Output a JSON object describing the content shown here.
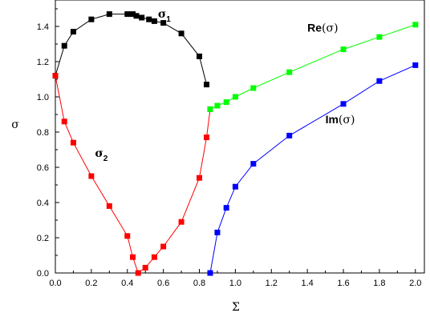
{
  "chart_data": {
    "type": "line",
    "xlabel": "Σ",
    "ylabel": "σ",
    "xlim": [
      0,
      2.05
    ],
    "ylim": [
      0,
      1.55
    ],
    "grid": false,
    "xticks": [
      "0.0",
      "0.2",
      "0.4",
      "0.6",
      "0.8",
      "1.0",
      "1.2",
      "1.4",
      "1.6",
      "1.8",
      "2.0"
    ],
    "yticks": [
      "0.0",
      "0.2",
      "0.4",
      "0.6",
      "0.8",
      "1.0",
      "1.2",
      "1.4"
    ],
    "series": [
      {
        "color": "#000000",
        "x": [
          0.0,
          0.05,
          0.1,
          0.2,
          0.3,
          0.4,
          0.43,
          0.45,
          0.48,
          0.52,
          0.55,
          0.6,
          0.7,
          0.8,
          0.84
        ],
        "y": [
          1.12,
          1.29,
          1.37,
          1.44,
          1.47,
          1.47,
          1.47,
          1.46,
          1.45,
          1.44,
          1.43,
          1.42,
          1.36,
          1.23,
          1.07
        ]
      },
      {
        "color": "#ff0000",
        "x": [
          0.0,
          0.05,
          0.1,
          0.2,
          0.3,
          0.4,
          0.43,
          0.46,
          0.5,
          0.55,
          0.6,
          0.7,
          0.8,
          0.84,
          0.86
        ],
        "y": [
          1.12,
          0.86,
          0.74,
          0.55,
          0.38,
          0.21,
          0.09,
          0.0,
          0.03,
          0.09,
          0.15,
          0.29,
          0.54,
          0.77,
          0.93
        ]
      },
      {
        "color": "#00ff00",
        "x": [
          0.86,
          0.9,
          0.95,
          1.0,
          1.1,
          1.3,
          1.6,
          1.8,
          2.0
        ],
        "y": [
          0.93,
          0.95,
          0.97,
          1.0,
          1.05,
          1.14,
          1.27,
          1.34,
          1.41
        ]
      },
      {
        "color": "#0000ff",
        "x": [
          0.86,
          0.9,
          0.95,
          1.0,
          1.1,
          1.3,
          1.6,
          1.8,
          2.0
        ],
        "y": [
          0.0,
          0.23,
          0.37,
          0.49,
          0.62,
          0.78,
          0.96,
          1.09,
          1.18
        ]
      }
    ],
    "annotations": [
      {
        "base": "σ",
        "sub": "1",
        "x": 0.57,
        "y": 1.45
      },
      {
        "base": "σ",
        "sub": "2",
        "x": 0.22,
        "y": 0.66
      },
      {
        "text_main": "Re",
        "text_sym": "(σ)",
        "x": 1.4,
        "y": 1.37
      },
      {
        "text_main": "Im",
        "text_sym": "(σ)",
        "x": 1.5,
        "y": 0.85
      }
    ]
  }
}
